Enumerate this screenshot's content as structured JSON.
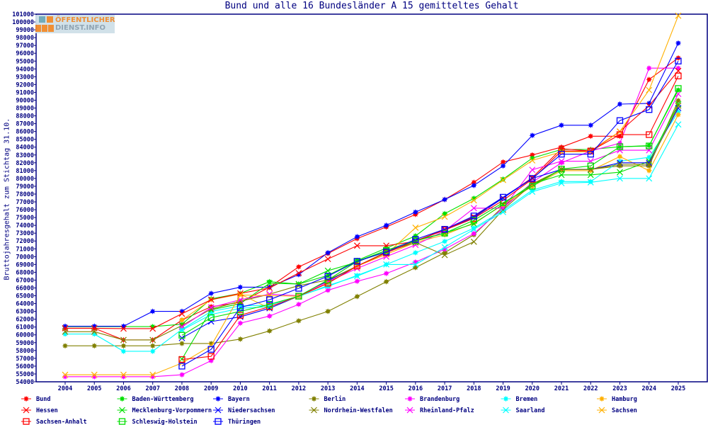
{
  "chart_data": {
    "type": "line",
    "title": "Bund und alle 16 Bundesländer A 15 gemitteltes Gehalt",
    "xlabel": "",
    "ylabel": "Bruttojahresgehalt zum Stichtag 31.10.",
    "ylim": [
      54000,
      101000
    ],
    "ytick_step": 1000,
    "grid": false,
    "legend_position": "bottom",
    "x": [
      2004,
      2005,
      2006,
      2007,
      2008,
      2009,
      2010,
      2011,
      2012,
      2013,
      2014,
      2015,
      2016,
      2017,
      2018,
      2019,
      2020,
      2021,
      2022,
      2023,
      2024,
      2025
    ],
    "series": [
      {
        "name": "Bund",
        "color": "#ff0000",
        "marker": "star",
        "values": [
          60850,
          60850,
          59350,
          59350,
          61900,
          63600,
          64150,
          66100,
          68700,
          70400,
          72300,
          73800,
          75400,
          77300,
          79500,
          82100,
          83000,
          84000,
          85400,
          85400,
          92650,
          95400
        ]
      },
      {
        "name": "Baden-Württemberg",
        "color": "#00e000",
        "marker": "star",
        "values": [
          61050,
          61050,
          61050,
          61050,
          61350,
          64600,
          65300,
          66800,
          66500,
          67600,
          69500,
          71100,
          72650,
          75500,
          77450,
          79900,
          82600,
          83700,
          83700,
          84050,
          84200,
          91300
        ]
      },
      {
        "name": "Bayern",
        "color": "#0000ff",
        "marker": "star",
        "values": [
          61100,
          61100,
          61100,
          63000,
          63000,
          65300,
          66100,
          66100,
          67700,
          70500,
          72550,
          74000,
          75700,
          77300,
          79100,
          81600,
          85500,
          86800,
          86800,
          89500,
          89600,
          97300
        ]
      },
      {
        "name": "Berlin",
        "color": "#808000",
        "marker": "star",
        "values": [
          58600,
          58600,
          58600,
          58600,
          58900,
          58900,
          59450,
          60500,
          61800,
          63000,
          64900,
          66800,
          68600,
          70500,
          72800,
          76400,
          79200,
          81150,
          81150,
          81600,
          81600,
          89950
        ]
      },
      {
        "name": "Brandenburg",
        "color": "#ff00ff",
        "marker": "star",
        "values": [
          54650,
          54650,
          54650,
          54650,
          54900,
          56700,
          61500,
          62400,
          63900,
          65700,
          66850,
          67850,
          69300,
          70950,
          72950,
          76200,
          79500,
          82000,
          83500,
          84500,
          94100,
          94100
        ]
      },
      {
        "name": "Bremen",
        "color": "#00ffff",
        "marker": "star",
        "values": [
          60100,
          60100,
          57900,
          57900,
          60700,
          63000,
          63700,
          63800,
          64950,
          66200,
          67600,
          69000,
          70500,
          71950,
          73650,
          75900,
          78500,
          79600,
          79600,
          82200,
          82700,
          88500
        ]
      },
      {
        "name": "Hamburg",
        "color": "#ffb000",
        "marker": "star",
        "values": [
          null,
          null,
          null,
          null,
          61900,
          64500,
          65200,
          63400,
          64950,
          66600,
          68800,
          70300,
          71800,
          72800,
          74300,
          76600,
          79000,
          81000,
          81000,
          82800,
          81000,
          88150
        ]
      },
      {
        "name": "Hessen",
        "color": "#ff0000",
        "marker": "x",
        "values": [
          60850,
          60850,
          60800,
          60800,
          62700,
          64500,
          65300,
          66000,
          67900,
          69700,
          71400,
          71400,
          71950,
          73500,
          75100,
          77500,
          80100,
          83800,
          83500,
          86000,
          89300,
          93750
        ]
      },
      {
        "name": "Mecklenburg-Vorpommern",
        "color": "#00e000",
        "marker": "x",
        "values": [
          null,
          null,
          null,
          null,
          56900,
          63200,
          64000,
          66600,
          66500,
          68200,
          69300,
          70800,
          72100,
          73000,
          74200,
          76700,
          79300,
          80450,
          80450,
          80800,
          82200,
          89500
        ]
      },
      {
        "name": "Niedersachsen",
        "color": "#0000ff",
        "marker": "x",
        "values": [
          null,
          null,
          null,
          null,
          59600,
          61700,
          62300,
          63400,
          64950,
          66900,
          68800,
          70500,
          72000,
          73400,
          75000,
          77500,
          80000,
          81150,
          81150,
          82000,
          82000,
          89000
        ]
      },
      {
        "name": "Nordrhein-Westfalen",
        "color": "#808000",
        "marker": "x",
        "values": [
          60400,
          60400,
          59350,
          59350,
          61200,
          63300,
          64300,
          65200,
          66300,
          67000,
          68800,
          70600,
          71800,
          70200,
          71900,
          76000,
          79300,
          81150,
          81150,
          81800,
          81800,
          89300
        ]
      },
      {
        "name": "Rheinland-Pfalz",
        "color": "#ff00ff",
        "marker": "x",
        "values": [
          null,
          null,
          null,
          null,
          61000,
          63500,
          64500,
          65200,
          65000,
          66800,
          68500,
          70000,
          71500,
          73300,
          76200,
          76200,
          81100,
          82200,
          82200,
          83600,
          83600,
          90800
        ]
      },
      {
        "name": "Saarland",
        "color": "#00ffff",
        "marker": "x",
        "values": [
          null,
          null,
          null,
          null,
          60600,
          62600,
          63400,
          63600,
          64900,
          66300,
          67500,
          69000,
          69000,
          71200,
          73500,
          75700,
          78300,
          79400,
          79500,
          80000,
          80000,
          86900
        ]
      },
      {
        "name": "Sachsen",
        "color": "#ffb000",
        "marker": "x",
        "values": [
          54900,
          54900,
          54900,
          54900,
          56400,
          58600,
          65100,
          65000,
          64950,
          66600,
          68800,
          70300,
          73700,
          75100,
          77200,
          79800,
          82300,
          83400,
          83400,
          86000,
          91300,
          100800
        ]
      },
      {
        "name": "Sachsen-Anhalt",
        "color": "#ff0000",
        "marker": "square",
        "values": [
          null,
          null,
          null,
          null,
          56850,
          57250,
          62500,
          63600,
          64950,
          66600,
          68800,
          70500,
          72000,
          73400,
          74900,
          77200,
          79900,
          83500,
          83500,
          85600,
          85600,
          93100
        ]
      },
      {
        "name": "Schleswig-Holstein",
        "color": "#00e000",
        "marker": "square",
        "values": [
          null,
          null,
          null,
          null,
          59950,
          62200,
          63000,
          63900,
          64950,
          67000,
          69400,
          70800,
          72000,
          73000,
          74650,
          76900,
          79000,
          81200,
          81600,
          84050,
          84150,
          91500
        ]
      },
      {
        "name": "Thüringen",
        "color": "#0000ff",
        "marker": "square",
        "values": [
          null,
          null,
          null,
          null,
          56000,
          58150,
          63500,
          64500,
          65950,
          67500,
          69400,
          70600,
          72200,
          73500,
          75200,
          77600,
          80000,
          83100,
          83100,
          87400,
          88800,
          95000
        ]
      }
    ]
  },
  "logo": {
    "line1": "ÖFFENTLICHER",
    "line2": "DIENST.INFO"
  },
  "axis_color": "#000080"
}
